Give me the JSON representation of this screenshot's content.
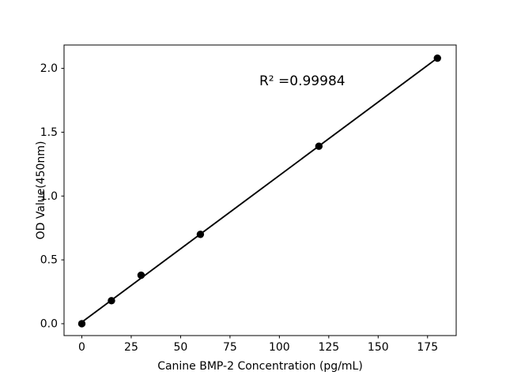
{
  "figure": {
    "background": "#ffffff"
  },
  "chart_data": {
    "type": "scatter",
    "title": "",
    "xlabel": "Canine BMP-2 Concentration (pg/mL)",
    "ylabel": "OD Value(450nm)",
    "annotation": {
      "text": "R² =0.99984"
    },
    "x": [
      0,
      15,
      30,
      60,
      120,
      180
    ],
    "y": [
      0.0,
      0.18,
      0.38,
      0.7,
      1.39,
      2.08
    ],
    "fit_line": {
      "x1": 0,
      "y1": 0.012,
      "x2": 180,
      "y2": 2.081,
      "r_squared": 0.99984
    },
    "x_ticks": [
      "0",
      "25",
      "50",
      "75",
      "100",
      "125",
      "150",
      "175"
    ],
    "x_tick_values": [
      0,
      25,
      50,
      75,
      100,
      125,
      150,
      175
    ],
    "y_ticks": [
      "0.0",
      "0.5",
      "1.0",
      "1.5",
      "2.0"
    ],
    "y_tick_values": [
      0.0,
      0.5,
      1.0,
      1.5,
      2.0
    ],
    "xlim": [
      -9,
      189.5
    ],
    "ylim": [
      -0.093,
      2.183
    ],
    "grid": false,
    "legend": null,
    "marker_color": "#000000",
    "line_color": "#000000",
    "axis_color": "#000000",
    "text_color": "#000000"
  }
}
